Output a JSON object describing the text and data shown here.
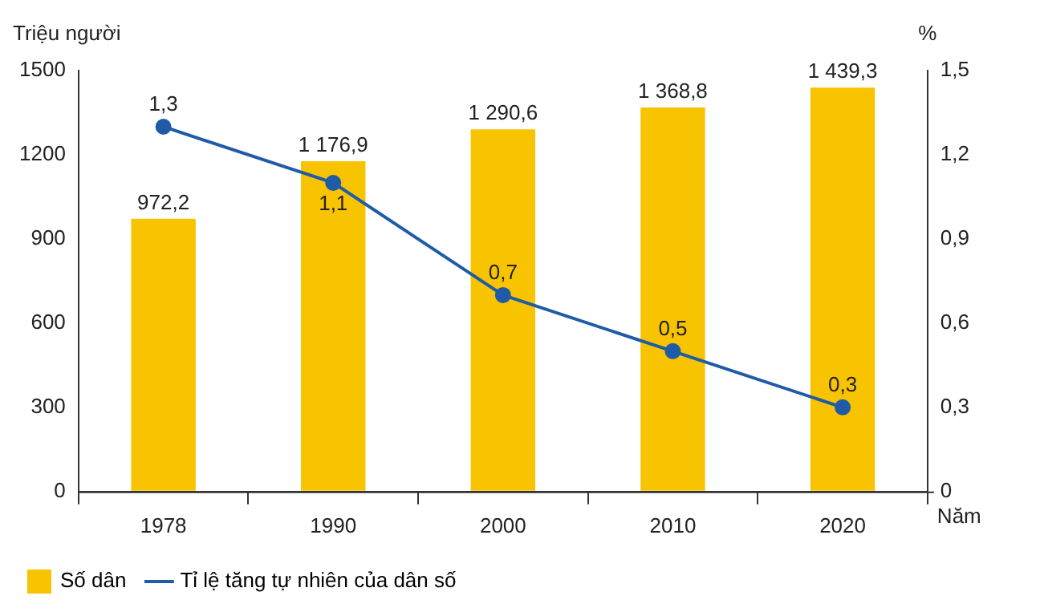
{
  "chart_data": {
    "type": "bar",
    "categories": [
      "1978",
      "1990",
      "2000",
      "2010",
      "2020"
    ],
    "series": [
      {
        "name": "Số dân",
        "color": "#f8c300",
        "values": [
          972.2,
          1176.9,
          1290.6,
          1368.8,
          1439.3
        ],
        "value_labels": [
          "972,2",
          "1 176,9",
          "1 290,6",
          "1 368,8",
          "1 439,3"
        ]
      },
      {
        "name": "Tỉ lệ tăng tự nhiên của dân số",
        "type": "line",
        "axis": "y2",
        "color": "#1f5ba6",
        "values": [
          1.3,
          1.1,
          0.7,
          0.5,
          0.3
        ],
        "value_labels": [
          "1,3",
          "1,1",
          "0,7",
          "0,5",
          "0,3"
        ]
      }
    ],
    "xlabel": "Năm",
    "ylabel": "Triệu người",
    "y2label": "%",
    "ylim": [
      0,
      1500
    ],
    "yticks": [
      0,
      300,
      600,
      900,
      1200,
      1500
    ],
    "y2lim": [
      0,
      1.5
    ],
    "y2ticks": [
      0,
      {
        "value": 0.3,
        "label": "0,3"
      },
      {
        "value": 0.6,
        "label": "0,6"
      },
      {
        "value": 0.9,
        "label": "0,9"
      },
      {
        "value": 1.2,
        "label": "1,2"
      },
      {
        "value": 1.5,
        "label": "1,5"
      }
    ],
    "legend": "bottom",
    "grid": false,
    "marker": "circle",
    "line_style": "solid"
  }
}
